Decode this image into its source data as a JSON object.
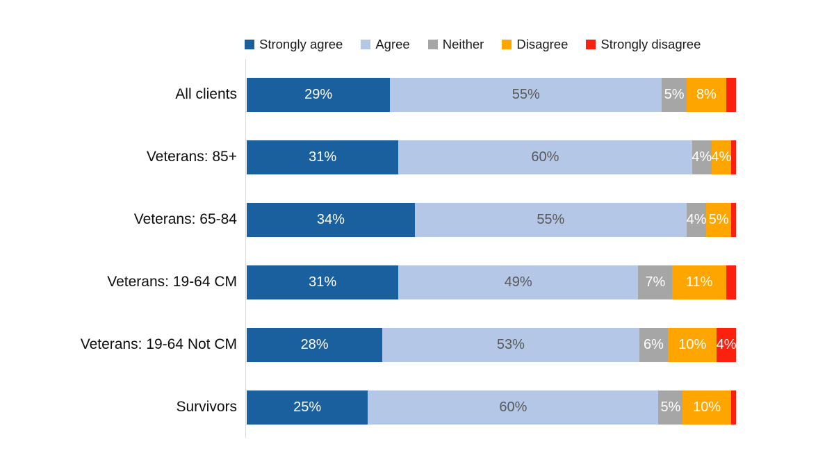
{
  "chart_data": {
    "type": "bar",
    "orientation": "horizontal-stacked",
    "title": "",
    "xlabel": "",
    "ylabel": "",
    "xlim": [
      0,
      100
    ],
    "value_suffix": "%",
    "grid": false,
    "legend_position": "top",
    "axis_line_color": "#d9d9d9",
    "categories": [
      "All clients",
      "Veterans: 85+",
      "Veterans: 65-84",
      "Veterans: 19-64 CM",
      "Veterans: 19-64 Not CM",
      "Survivors"
    ],
    "series": [
      {
        "name": "Strongly agree",
        "color": "#1a5f9e",
        "text_color": "#ffffff",
        "values": [
          29,
          31,
          34,
          31,
          28,
          25
        ],
        "labels": [
          "29%",
          "31%",
          "34%",
          "31%",
          "28%",
          "25%"
        ]
      },
      {
        "name": "Agree",
        "color": "#b4c7e7",
        "text_color": "#595959",
        "values": [
          55,
          60,
          55,
          49,
          53,
          60
        ],
        "labels": [
          "55%",
          "60%",
          "55%",
          "49%",
          "53%",
          "60%"
        ]
      },
      {
        "name": "Neither",
        "color": "#a6a6a6",
        "text_color": "#ffffff",
        "values": [
          5,
          4,
          4,
          7,
          6,
          5
        ],
        "labels": [
          "5%",
          "4%",
          "4%",
          "7%",
          "6%",
          "5%"
        ]
      },
      {
        "name": "Disagree",
        "color": "#ffa500",
        "text_color": "#ffffff",
        "values": [
          8,
          4,
          5,
          11,
          10,
          10
        ],
        "labels": [
          "8%",
          "4%",
          "5%",
          "11%",
          "10%",
          "10%"
        ]
      },
      {
        "name": "Strongly disagree",
        "color": "#fc200e",
        "text_color": "#ffffff",
        "values": [
          2,
          1,
          1,
          2,
          4,
          1
        ],
        "labels": [
          "",
          "",
          "",
          "",
          "4%",
          ""
        ]
      }
    ]
  },
  "legend": {
    "items": [
      {
        "label": "Strongly agree",
        "color": "#1a5f9e"
      },
      {
        "label": "Agree",
        "color": "#b4c7e7"
      },
      {
        "label": "Neither",
        "color": "#a6a6a6"
      },
      {
        "label": "Disagree",
        "color": "#ffa500"
      },
      {
        "label": "Strongly disagree",
        "color": "#fc200e"
      }
    ]
  }
}
